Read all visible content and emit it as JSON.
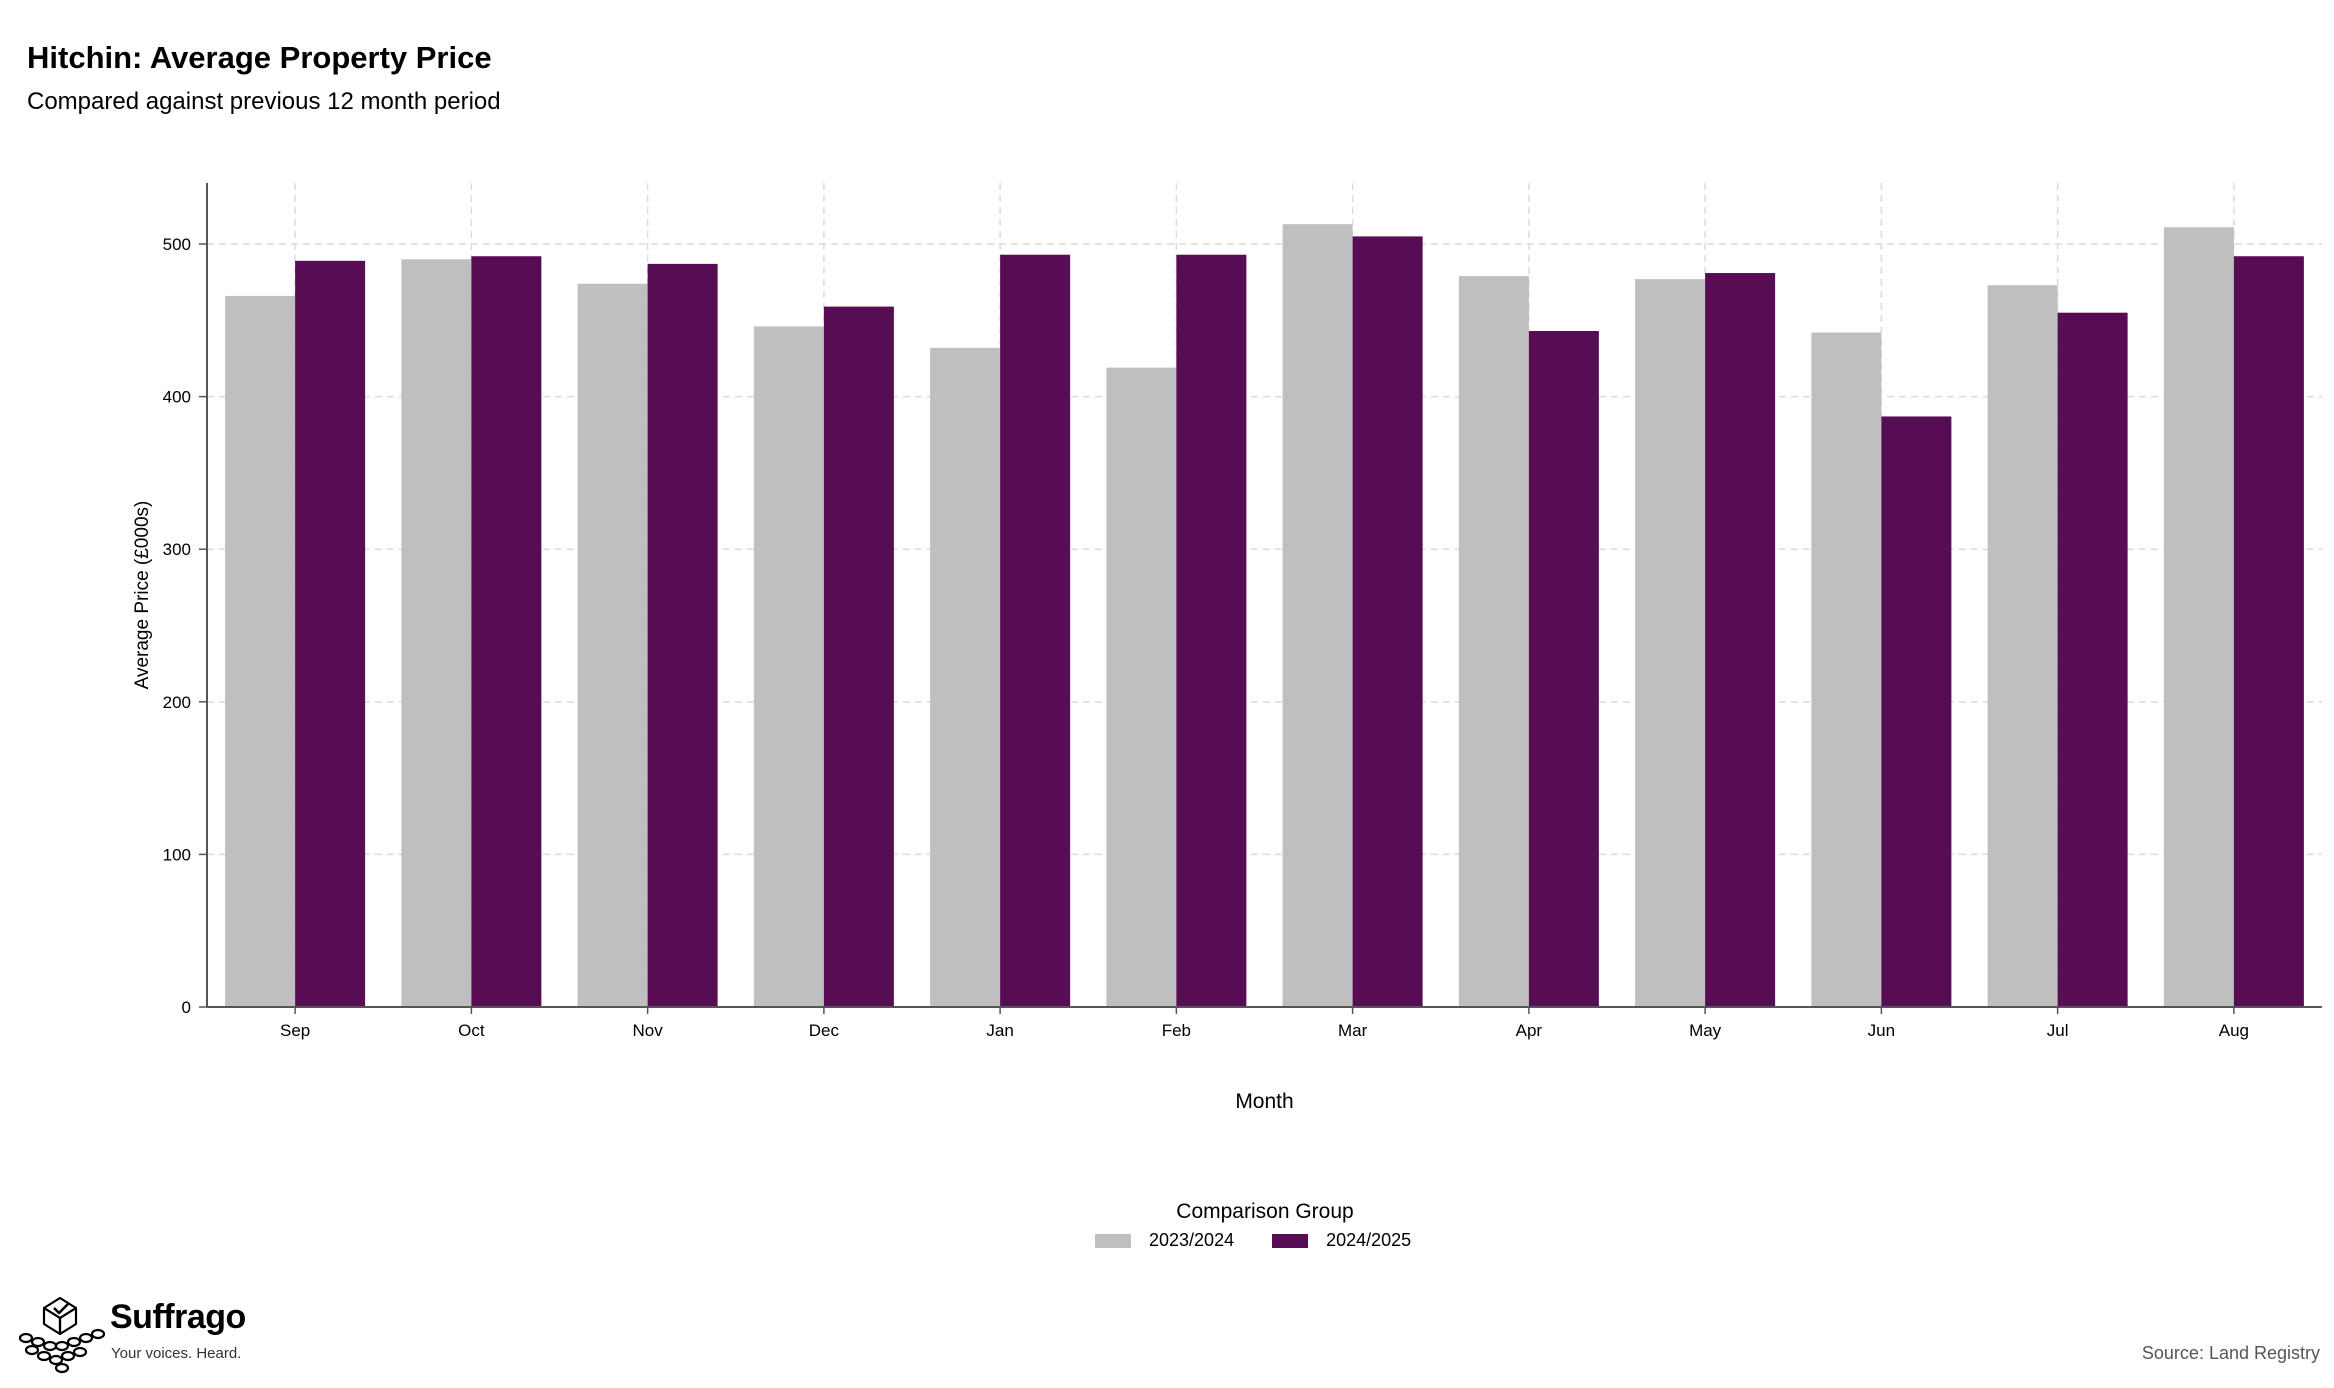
{
  "title": "Hitchin: Average Property Price",
  "subtitle": "Compared against previous 12 month period",
  "legend": {
    "title": "Comparison Group",
    "items": [
      {
        "label": "2023/2024",
        "color": "#bfbfbf"
      },
      {
        "label": "2024/2025",
        "color": "#560d53"
      }
    ]
  },
  "brand": {
    "name": "Suffrago",
    "tagline": "Your voices. Heard."
  },
  "source": "Source: Land Registry",
  "chart_data": {
    "type": "bar",
    "xlabel": "Month",
    "ylabel": "Average Price (£000s)",
    "categories": [
      "Sep",
      "Oct",
      "Nov",
      "Dec",
      "Jan",
      "Feb",
      "Mar",
      "Apr",
      "May",
      "Jun",
      "Jul",
      "Aug"
    ],
    "series": [
      {
        "name": "2023/2024",
        "color": "#bfbfbf",
        "values": [
          466,
          490,
          474,
          446,
          432,
          419,
          513,
          479,
          477,
          442,
          473,
          511
        ]
      },
      {
        "name": "2024/2025",
        "color": "#560d53",
        "values": [
          489,
          492,
          487,
          459,
          493,
          493,
          505,
          443,
          481,
          387,
          455,
          492
        ]
      }
    ],
    "ylim": [
      0,
      540
    ],
    "yticks": [
      0,
      100,
      200,
      300,
      400,
      500
    ],
    "grid": true,
    "legend_position": "bottom-center"
  }
}
